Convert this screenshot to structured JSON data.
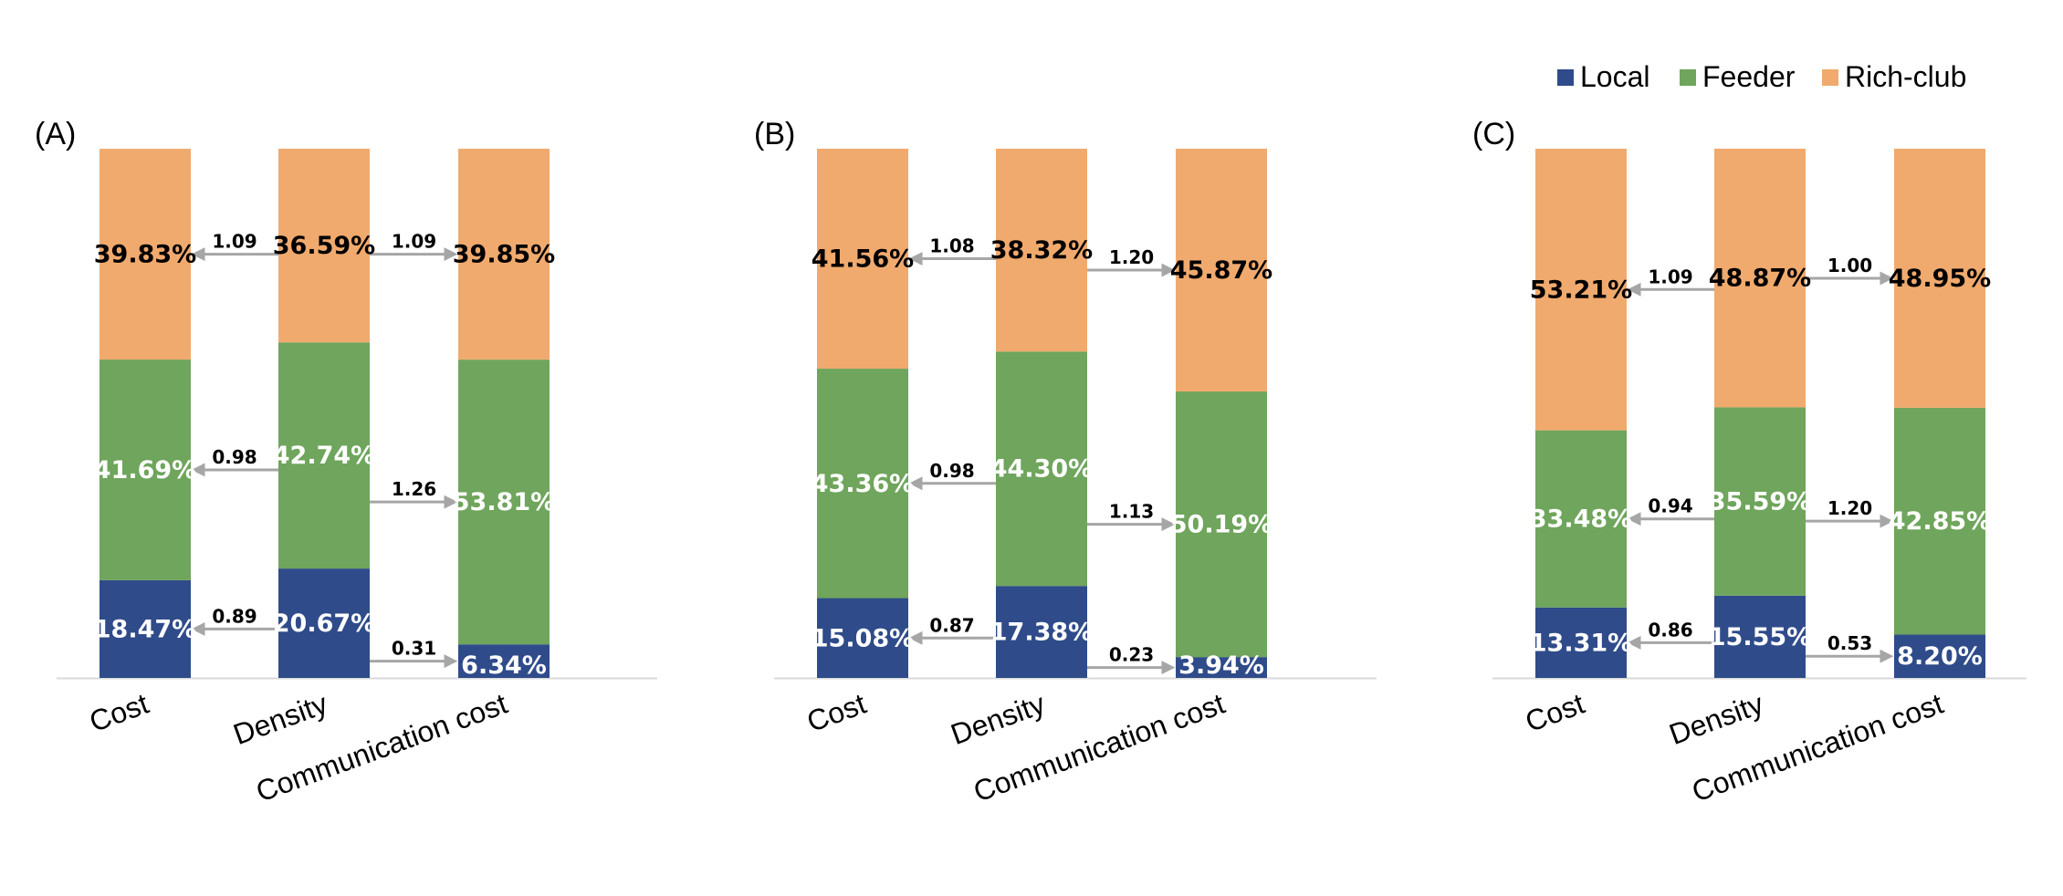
{
  "chart_data": {
    "type": "bar",
    "stacked": true,
    "normalized": true,
    "colors": {
      "Local": "#2f4b8a",
      "Feeder": "#6fa55c",
      "Rich-club": "#f0aa6e",
      "arrow": "#a6a6a6",
      "axis": "#d9d9d9"
    },
    "legend": {
      "position": "top-right",
      "entries": [
        "Local",
        "Feeder",
        "Rich-club"
      ]
    },
    "categories": [
      "Cost",
      "Density",
      "Communication cost"
    ],
    "panels": [
      {
        "label": "(A)",
        "series": [
          {
            "name": "Local",
            "values": [
              18.47,
              20.67,
              6.34
            ],
            "labels": [
              "18.47%",
              "20.67%",
              "6.34%"
            ]
          },
          {
            "name": "Feeder",
            "values": [
              41.69,
              42.74,
              53.81
            ],
            "labels": [
              "41.69%",
              "42.74%",
              "53.81%"
            ]
          },
          {
            "name": "Rich-club",
            "values": [
              39.83,
              36.59,
              39.85
            ],
            "labels": [
              "39.83%",
              "36.59%",
              "39.85%"
            ]
          }
        ],
        "ratios": {
          "left": {
            "Local": "0.89",
            "Feeder": "0.98",
            "Rich-club": "1.09"
          },
          "right": {
            "Local": "0.31",
            "Feeder": "1.26",
            "Rich-club": "1.09"
          }
        }
      },
      {
        "label": "(B)",
        "series": [
          {
            "name": "Local",
            "values": [
              15.08,
              17.38,
              3.94
            ],
            "labels": [
              "15.08%",
              "17.38%",
              "3.94%"
            ]
          },
          {
            "name": "Feeder",
            "values": [
              43.36,
              44.3,
              50.19
            ],
            "labels": [
              "43.36%",
              "44.30%",
              "50.19%"
            ]
          },
          {
            "name": "Rich-club",
            "values": [
              41.56,
              38.32,
              45.87
            ],
            "labels": [
              "41.56%",
              "38.32%",
              "45.87%"
            ]
          }
        ],
        "ratios": {
          "left": {
            "Local": "0.87",
            "Feeder": "0.98",
            "Rich-club": "1.08"
          },
          "right": {
            "Local": "0.23",
            "Feeder": "1.13",
            "Rich-club": "1.20"
          }
        }
      },
      {
        "label": "(C)",
        "series": [
          {
            "name": "Local",
            "values": [
              13.31,
              15.55,
              8.2
            ],
            "labels": [
              "13.31%",
              "15.55%",
              "8.20%"
            ]
          },
          {
            "name": "Feeder",
            "values": [
              33.48,
              35.59,
              42.85
            ],
            "labels": [
              "33.48%",
              "35.59%",
              "42.85%"
            ]
          },
          {
            "name": "Rich-club",
            "values": [
              53.21,
              48.87,
              48.95
            ],
            "labels": [
              "53.21%",
              "48.87%",
              "48.95%"
            ]
          }
        ],
        "ratios": {
          "left": {
            "Local": "0.86",
            "Feeder": "0.94",
            "Rich-club": "1.09"
          },
          "right": {
            "Local": "0.53",
            "Feeder": "1.20",
            "Rich-club": "1.00"
          }
        }
      }
    ]
  }
}
